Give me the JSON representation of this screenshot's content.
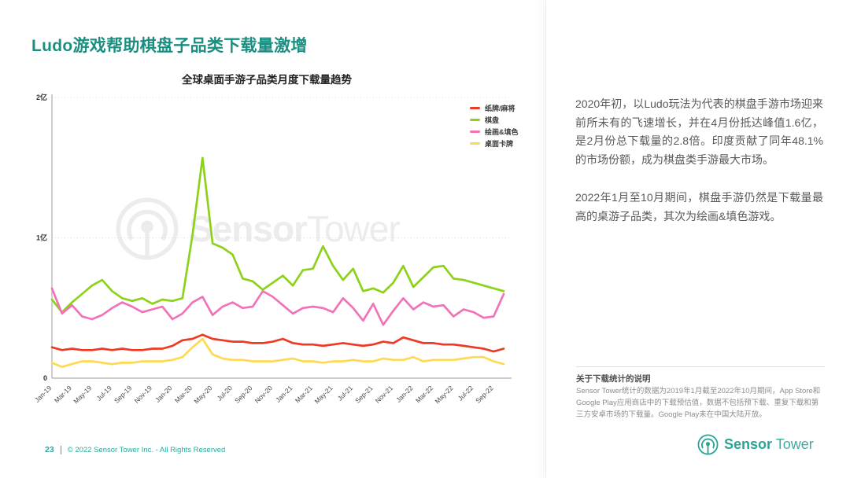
{
  "slide": {
    "title": "Ludo游戏帮助棋盘子品类下载量激增",
    "page_number": "23",
    "copyright": "© 2022 Sensor Tower Inc. - All Rights Reserved"
  },
  "watermark": {
    "bold": "Sensor",
    "light": "Tower"
  },
  "logo": {
    "bold": "Sensor",
    "light": "Tower"
  },
  "panel": {
    "paragraph1": "2020年初，以Ludo玩法为代表的棋盘手游市场迎来前所未有的飞速增长，并在4月份抵达峰值1.6亿，是2月份总下载量的2.8倍。印度贡献了同年48.1%的市场份额，成为棋盘类手游最大市场。",
    "paragraph2": "2022年1月至10月期间，棋盘手游仍然是下载量最高的桌游子品类，其次为绘画&填色游戏。",
    "note_title": "关于下载统计的说明",
    "note_body": "Sensor Tower统计的数据为2019年1月截至2022年10月期间，App Store和Google Play应用商店中的下载预估值，数据不包括预下载、重复下载和第三方安卓市场的下载量。Google Play未在中国大陆开放。"
  },
  "chart_data": {
    "type": "line",
    "title": "全球桌面手游子品类月度下载量趋势",
    "unit": "亿",
    "x": [
      "Jan-19",
      "Feb-19",
      "Mar-19",
      "Apr-19",
      "May-19",
      "Jun-19",
      "Jul-19",
      "Aug-19",
      "Sep-19",
      "Oct-19",
      "Nov-19",
      "Dec-19",
      "Jan-20",
      "Feb-20",
      "Mar-20",
      "Apr-20",
      "May-20",
      "Jun-20",
      "Jul-20",
      "Aug-20",
      "Sep-20",
      "Oct-20",
      "Nov-20",
      "Dec-20",
      "Jan-21",
      "Feb-21",
      "Mar-21",
      "Apr-21",
      "May-21",
      "Jun-21",
      "Jul-21",
      "Aug-21",
      "Sep-21",
      "Oct-21",
      "Nov-21",
      "Dec-21",
      "Jan-22",
      "Feb-22",
      "Mar-22",
      "Apr-22",
      "May-22",
      "Jun-22",
      "Jul-22",
      "Aug-22",
      "Sep-22",
      "Oct-22"
    ],
    "tick_labels": [
      "Jan-19",
      "Mar-19",
      "May-19",
      "Jul-19",
      "Sep-19",
      "Nov-19",
      "Jan-20",
      "Mar-20",
      "May-20",
      "Jul-20",
      "Sep-20",
      "Nov-20",
      "Jan-21",
      "Mar-21",
      "May-21",
      "Jul-21",
      "Sep-21",
      "Nov-21",
      "Jan-22",
      "Mar-22",
      "May-22",
      "Jul-22",
      "Sep-22"
    ],
    "y_axis": {
      "labels": [
        "2亿",
        "1亿",
        "0"
      ],
      "values": [
        2,
        1,
        0
      ],
      "max": 2,
      "gridlines": [
        1,
        2
      ]
    },
    "legend_position": "right-top",
    "grid": "horizontal-dotted",
    "series": [
      {
        "name": "纸牌/麻将",
        "color": "#ee3a24",
        "values": [
          0.22,
          0.2,
          0.21,
          0.2,
          0.2,
          0.21,
          0.2,
          0.21,
          0.2,
          0.2,
          0.21,
          0.21,
          0.23,
          0.27,
          0.28,
          0.31,
          0.28,
          0.27,
          0.26,
          0.26,
          0.25,
          0.25,
          0.26,
          0.28,
          0.25,
          0.24,
          0.24,
          0.23,
          0.24,
          0.25,
          0.24,
          0.23,
          0.24,
          0.26,
          0.25,
          0.29,
          0.27,
          0.25,
          0.25,
          0.24,
          0.24,
          0.23,
          0.22,
          0.21,
          0.19,
          0.21
        ]
      },
      {
        "name": "棋盘",
        "color": "#8cd21b",
        "values": [
          0.56,
          0.47,
          0.54,
          0.6,
          0.66,
          0.7,
          0.62,
          0.57,
          0.55,
          0.57,
          0.53,
          0.56,
          0.55,
          0.57,
          1.02,
          1.57,
          0.96,
          0.93,
          0.88,
          0.71,
          0.69,
          0.63,
          0.68,
          0.73,
          0.66,
          0.77,
          0.78,
          0.94,
          0.8,
          0.7,
          0.78,
          0.62,
          0.64,
          0.61,
          0.68,
          0.8,
          0.65,
          0.72,
          0.79,
          0.8,
          0.71,
          0.7,
          0.68,
          0.66,
          0.64,
          0.62
        ]
      },
      {
        "name": "绘画&填色",
        "color": "#f272b8",
        "values": [
          0.64,
          0.46,
          0.52,
          0.44,
          0.42,
          0.45,
          0.5,
          0.54,
          0.51,
          0.47,
          0.49,
          0.51,
          0.42,
          0.46,
          0.54,
          0.58,
          0.45,
          0.51,
          0.54,
          0.5,
          0.51,
          0.62,
          0.58,
          0.52,
          0.46,
          0.5,
          0.51,
          0.5,
          0.47,
          0.57,
          0.5,
          0.41,
          0.53,
          0.38,
          0.48,
          0.57,
          0.49,
          0.54,
          0.51,
          0.52,
          0.44,
          0.49,
          0.47,
          0.43,
          0.44,
          0.6
        ]
      },
      {
        "name": "桌面卡牌",
        "color": "#ffd951",
        "values": [
          0.11,
          0.08,
          0.1,
          0.12,
          0.12,
          0.11,
          0.1,
          0.11,
          0.11,
          0.12,
          0.12,
          0.12,
          0.13,
          0.15,
          0.22,
          0.28,
          0.17,
          0.14,
          0.13,
          0.13,
          0.12,
          0.12,
          0.12,
          0.13,
          0.14,
          0.12,
          0.12,
          0.11,
          0.12,
          0.12,
          0.13,
          0.12,
          0.12,
          0.14,
          0.13,
          0.13,
          0.15,
          0.12,
          0.13,
          0.13,
          0.13,
          0.14,
          0.15,
          0.15,
          0.12,
          0.1
        ]
      }
    ]
  }
}
